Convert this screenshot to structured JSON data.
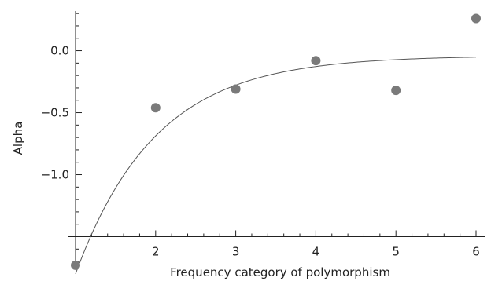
{
  "chart_data": {
    "type": "scatter",
    "title": "",
    "xlabel": "Frequency category of polymorphism",
    "ylabel": "Alpha",
    "xlim": [
      1,
      6.05
    ],
    "ylim": [
      -1.75,
      0.32
    ],
    "x_axis_crossing_y": -1.5,
    "x_ticks": [
      2,
      3,
      4,
      5,
      6
    ],
    "x_tick_labels": [
      "2",
      "3",
      "4",
      "5",
      "6"
    ],
    "y_ticks": [
      0.0,
      -0.5,
      -1.0
    ],
    "y_tick_labels": [
      "0.0",
      "−0.5",
      "−1.0"
    ],
    "grid": false,
    "series": [
      {
        "kind": "points",
        "x": [
          1,
          2,
          3,
          4,
          5,
          6
        ],
        "y": [
          -1.73,
          -0.46,
          -0.31,
          -0.08,
          -0.32,
          0.26
        ],
        "color": "#7a7a7a"
      },
      {
        "kind": "fitted-curve",
        "model": "y = a - b*exp(-c*(x-1))",
        "a": -0.04,
        "b": 1.76,
        "c": 1.0,
        "color": "#555555"
      }
    ]
  }
}
